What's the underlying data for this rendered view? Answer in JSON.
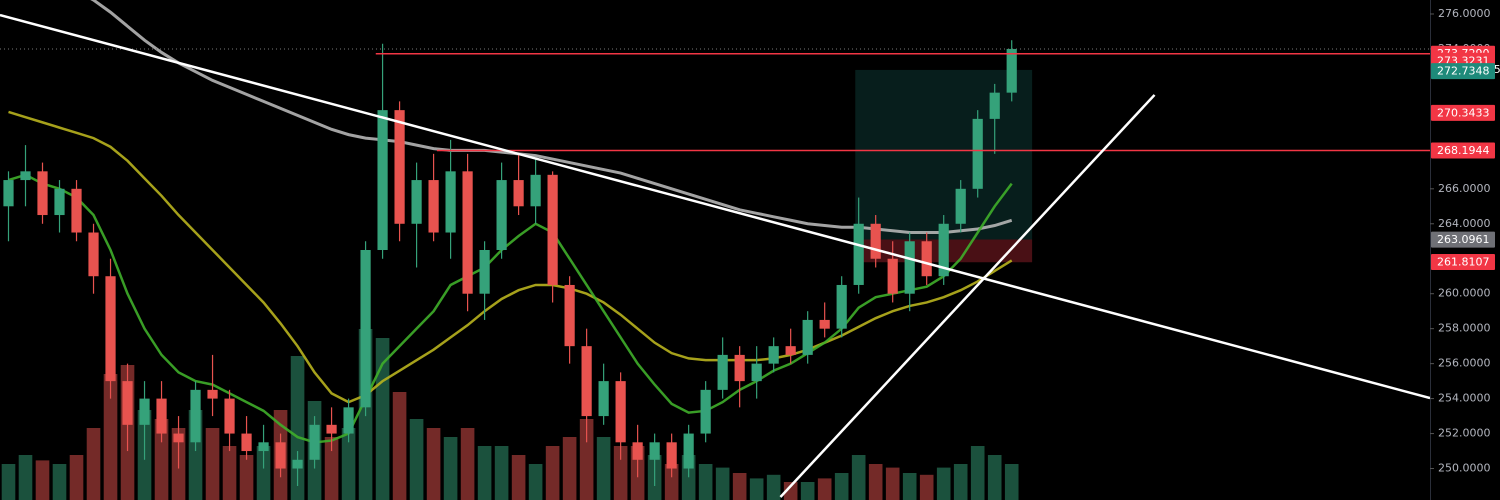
{
  "chart_data": {
    "type": "candlestick",
    "xlim": [
      -0.5,
      83.6
    ],
    "ylim": [
      248.2,
      276.8
    ],
    "yticks": [
      {
        "value": 276,
        "label": "276.0000"
      },
      {
        "value": 274,
        "label": "274.0000"
      },
      {
        "value": 266,
        "label": "266.0000"
      },
      {
        "value": 264,
        "label": "264.0000"
      },
      {
        "value": 260,
        "label": "260.0000"
      },
      {
        "value": 258,
        "label": "258.0000"
      },
      {
        "value": 256,
        "label": "256.0000"
      },
      {
        "value": 254,
        "label": "254.0000"
      },
      {
        "value": 252,
        "label": "252.0000"
      },
      {
        "value": 250,
        "label": "250.0000"
      }
    ],
    "up_color": "#35a27a",
    "down_color": "#e8534f",
    "open": [
      265,
      266.5,
      267,
      264.5,
      266,
      263.5,
      261,
      255,
      252.5,
      254,
      252,
      251.5,
      254.5,
      254,
      252,
      251,
      251.5,
      250,
      250.5,
      252.5,
      252,
      253.5,
      262.5,
      270.5,
      264,
      266.5,
      263.5,
      267,
      260,
      262.5,
      266.5,
      265,
      266.8,
      260.5,
      257,
      253,
      255,
      251.5,
      250.5,
      251.5,
      250,
      252,
      254.5,
      256.5,
      255,
      256,
      257,
      256.5,
      258.5,
      258,
      260.5,
      264,
      262,
      260,
      263,
      261,
      264,
      266,
      270,
      271.5
    ],
    "high": [
      267,
      268.5,
      267.5,
      266.5,
      266.5,
      264,
      262,
      256,
      255,
      255,
      253,
      255,
      256.5,
      254.5,
      253,
      252.5,
      252,
      251,
      253,
      253.5,
      254,
      263,
      274.3,
      271,
      267.5,
      268,
      268.8,
      268,
      263,
      267.5,
      268,
      267.8,
      267,
      261,
      258,
      256,
      255.5,
      252.5,
      252,
      252,
      252.5,
      255,
      257.5,
      257,
      257,
      257.5,
      258,
      259,
      259.5,
      261,
      265.5,
      264.5,
      263,
      263.5,
      263.5,
      264.5,
      266.5,
      270.5,
      272,
      274.5
    ],
    "low": [
      263,
      265,
      264,
      263.5,
      263,
      260,
      254,
      251,
      250.5,
      251.5,
      250,
      251,
      253,
      251,
      250.5,
      250,
      249.5,
      249,
      250,
      251,
      251.5,
      253,
      262,
      263,
      261.5,
      263,
      262,
      259,
      258.5,
      262,
      264.5,
      264,
      259.5,
      256,
      251.5,
      252.5,
      250.5,
      249.5,
      249,
      249.5,
      249.5,
      251.5,
      254,
      253.5,
      254,
      255.5,
      256,
      256,
      257.5,
      257.5,
      260,
      261.5,
      259.5,
      259,
      260.5,
      260.5,
      263.5,
      265.5,
      268,
      271
    ],
    "close": [
      266.5,
      267,
      264.5,
      266,
      263.5,
      261,
      255,
      252.5,
      254,
      252,
      251.5,
      254.5,
      254,
      252,
      251,
      251.5,
      250,
      250.5,
      252.5,
      252,
      253.5,
      262.5,
      270.5,
      264,
      266.5,
      263.5,
      267,
      260,
      262.5,
      266.5,
      265,
      266.8,
      260.5,
      257,
      253,
      255,
      251.5,
      250.5,
      251.5,
      250,
      252,
      254.5,
      256.5,
      255,
      256,
      257,
      256.5,
      258.5,
      258,
      260.5,
      264,
      262,
      260,
      263,
      261,
      264,
      266,
      270,
      271.5,
      274
    ],
    "volume": [
      20,
      25,
      22,
      20,
      25,
      40,
      70,
      75,
      50,
      45,
      40,
      50,
      40,
      30,
      25,
      30,
      50,
      80,
      55,
      35,
      40,
      95,
      90,
      60,
      45,
      40,
      35,
      40,
      30,
      30,
      25,
      20,
      30,
      35,
      45,
      35,
      30,
      30,
      25,
      20,
      25,
      20,
      18,
      15,
      12,
      14,
      10,
      10,
      12,
      15,
      25,
      20,
      18,
      15,
      14,
      18,
      20,
      30,
      25,
      20
    ],
    "volume_lim": [
      0,
      100
    ],
    "series": [
      {
        "color": "#b5b5b5",
        "values": [
          null,
          null,
          null,
          null,
          277.3,
          276.8,
          276.1,
          275.3,
          274.5,
          273.8,
          273.2,
          272.7,
          272.2,
          271.8,
          271.4,
          271,
          270.6,
          270.2,
          269.8,
          269.4,
          269.1,
          268.9,
          268.8,
          268.7,
          268.5,
          268.3,
          268.2,
          268.2,
          268.2,
          268.1,
          268,
          267.9,
          267.7,
          267.5,
          267.3,
          267.1,
          266.9,
          266.6,
          266.3,
          266,
          265.7,
          265.4,
          265.1,
          264.8,
          264.6,
          264.4,
          264.2,
          264,
          263.9,
          263.8,
          263.8,
          263.7,
          263.6,
          263.5,
          263.5,
          263.5,
          263.6,
          263.7,
          263.9,
          264.2
        ]
      },
      {
        "color": "#b8b21e",
        "values": [
          270.4,
          270.1,
          269.8,
          269.5,
          269.2,
          268.9,
          268.4,
          267.6,
          266.6,
          265.6,
          264.5,
          263.5,
          262.5,
          261.5,
          260.5,
          259.5,
          258.3,
          257,
          255.5,
          254.3,
          253.8,
          254.2,
          255,
          255.6,
          256.2,
          256.8,
          257.5,
          258.2,
          259,
          259.7,
          260.2,
          260.5,
          260.5,
          260.3,
          260,
          259.5,
          258.8,
          258,
          257.2,
          256.6,
          256.3,
          256.2,
          256.2,
          256.2,
          256.2,
          256.3,
          256.5,
          256.8,
          257.2,
          257.6,
          258.1,
          258.6,
          259,
          259.3,
          259.5,
          259.8,
          260.2,
          260.7,
          261.3,
          261.9
        ]
      },
      {
        "color": "#3fae2a",
        "values": [
          266.5,
          266.8,
          266.3,
          266,
          265.5,
          264.5,
          262.5,
          260,
          258,
          256.5,
          255.5,
          255,
          254.8,
          254.3,
          253.8,
          253.3,
          252.5,
          251.8,
          251.5,
          251.6,
          252,
          254,
          256,
          257,
          258,
          259,
          260.5,
          261,
          261.5,
          262.5,
          263.3,
          264,
          263.5,
          262,
          260.5,
          259,
          257.5,
          256,
          254.8,
          253.7,
          253.2,
          253.3,
          253.8,
          254.5,
          255,
          255.6,
          256,
          256.6,
          257.2,
          258,
          259.2,
          259.8,
          260,
          260.2,
          260.4,
          261,
          262,
          263.5,
          265,
          266.3
        ]
      }
    ],
    "trendlines": [
      {
        "color": "#ffffff",
        "x": [
          -0.5,
          83.6
        ],
        "y": [
          275.94,
          254.03
        ]
      },
      {
        "color": "#ffffff",
        "x": [
          45.4,
          67.4
        ],
        "y": [
          248.37,
          271.37
        ]
      }
    ],
    "hlines": [
      {
        "color": "#f23645",
        "x0": 21.6,
        "value": 273.729
      },
      {
        "color": "#f23645",
        "x0": 25.2,
        "value": 268.1944
      }
    ],
    "position": {
      "x": [
        49.8,
        60.2
      ],
      "target": [
        272.8,
        263.1
      ],
      "stop": [
        263.1,
        261.8
      ]
    },
    "price_labels": [
      {
        "value": 273.729,
        "label": "273.7290",
        "color": "#f23645"
      },
      {
        "value": 273.3231,
        "label": "273.3231",
        "color": "#f23645"
      },
      {
        "value": 272.7348,
        "label": "272.7348",
        "color": "#1e8a7a"
      },
      {
        "value": 270.3433,
        "label": "270.3433",
        "color": "#f23645"
      },
      {
        "value": 268.1944,
        "label": "268.1944",
        "color": "#f23645"
      },
      {
        "value": 263.0961,
        "label": "263.0961",
        "color": "#6f7076"
      },
      {
        "value": 261.8107,
        "label": "261.8107",
        "color": "#f23645"
      }
    ],
    "countdown": "04:55"
  }
}
